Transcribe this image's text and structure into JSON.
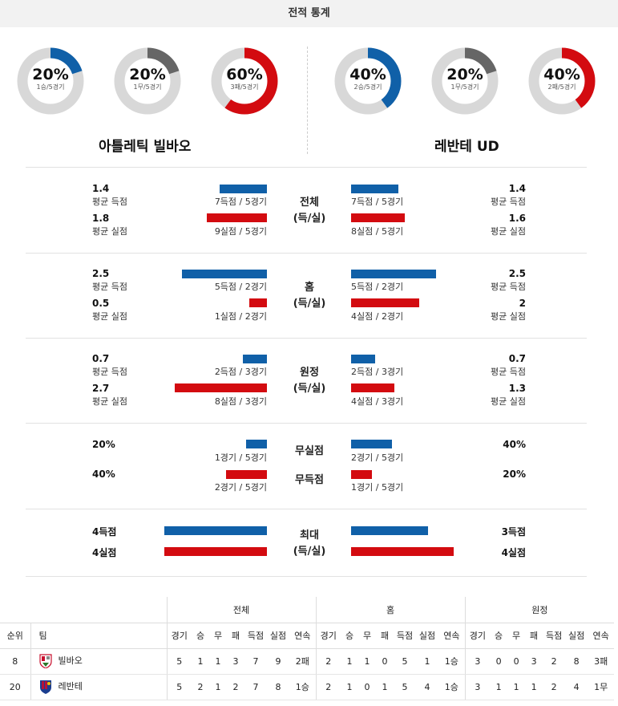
{
  "header": {
    "title": "전적 통계"
  },
  "teams": {
    "home": "아틀레틱 빌바오",
    "away": "레반테 UD"
  },
  "colors": {
    "win": "#1060a8",
    "draw": "#666666",
    "loss": "#d30b10",
    "track": "#d8d8d8"
  },
  "donuts": [
    {
      "pct_text": "20%",
      "sub": "1승/5경기",
      "fraction": 0.2,
      "kind": "win"
    },
    {
      "pct_text": "20%",
      "sub": "1무/5경기",
      "fraction": 0.2,
      "kind": "draw"
    },
    {
      "pct_text": "60%",
      "sub": "3패/5경기",
      "fraction": 0.6,
      "kind": "loss"
    },
    {
      "pct_text": "40%",
      "sub": "2승/5경기",
      "fraction": 0.4,
      "kind": "win"
    },
    {
      "pct_text": "20%",
      "sub": "1무/5경기",
      "fraction": 0.2,
      "kind": "draw"
    },
    {
      "pct_text": "40%",
      "sub": "2패/5경기",
      "fraction": 0.4,
      "kind": "loss"
    }
  ],
  "labels": {
    "avg_scored": "평균 득점",
    "avg_conceded": "평균 실점"
  },
  "sections": {
    "total": {
      "title": [
        "전체",
        "(득/실)"
      ],
      "home": {
        "scored": "1.4",
        "scored_count": "7득점 / 5경기",
        "conceded": "1.8",
        "conceded_count": "9실점 / 5경기"
      },
      "away": {
        "scored": "1.4",
        "scored_count": "7득점 / 5경기",
        "conceded": "1.6",
        "conceded_count": "8실점 / 5경기"
      }
    },
    "home": {
      "title": [
        "홈",
        "(득/실)"
      ],
      "home": {
        "scored": "2.5",
        "scored_count": "5득점 / 2경기",
        "conceded": "0.5",
        "conceded_count": "1실점 / 2경기"
      },
      "away": {
        "scored": "2.5",
        "scored_count": "5득점 / 2경기",
        "conceded": "2",
        "conceded_count": "4실점 / 2경기"
      }
    },
    "away": {
      "title": [
        "원정",
        "(득/실)"
      ],
      "home": {
        "scored": "0.7",
        "scored_count": "2득점 / 3경기",
        "conceded": "2.7",
        "conceded_count": "8실점 / 3경기"
      },
      "away": {
        "scored": "0.7",
        "scored_count": "2득점 / 3경기",
        "conceded": "1.3",
        "conceded_count": "4실점 / 3경기"
      }
    },
    "clean": {
      "title_clean": "무실점",
      "title_noscore": "무득점",
      "home": {
        "clean": "20%",
        "clean_count": "1경기 / 5경기",
        "noscore": "40%",
        "noscore_count": "2경기 / 5경기"
      },
      "away": {
        "clean": "40%",
        "clean_count": "2경기 / 5경기",
        "noscore": "20%",
        "noscore_count": "1경기 / 5경기"
      }
    },
    "max": {
      "title": [
        "최대",
        "(득/실)"
      ],
      "home": {
        "scored": "4득점",
        "conceded": "4실점"
      },
      "away": {
        "scored": "3득점",
        "conceded": "4실점"
      }
    }
  },
  "bar_levels": {
    "total": {
      "home_scored": 0.37,
      "home_conceded": 0.47,
      "away_scored": 0.37,
      "away_conceded": 0.42
    },
    "home": {
      "home_scored": 0.66,
      "home_conceded": 0.14,
      "away_scored": 0.66,
      "away_conceded": 0.53
    },
    "away": {
      "home_scored": 0.19,
      "home_conceded": 0.72,
      "away_scored": 0.19,
      "away_conceded": 0.34
    },
    "clean": {
      "home_clean": 0.16,
      "home_noscore": 0.32,
      "away_clean": 0.32,
      "away_noscore": 0.16
    },
    "max": {
      "home_scored": 0.8,
      "home_conceded": 0.8,
      "away_scored": 0.6,
      "away_conceded": 0.8
    }
  },
  "table": {
    "groups": [
      "전체",
      "홈",
      "원정"
    ],
    "col_rank": "순위",
    "col_team": "팀",
    "sub_headers": [
      "경기",
      "승",
      "무",
      "패",
      "득점",
      "실점",
      "연속"
    ],
    "rows": [
      {
        "rank": "8",
        "team": "빌바오",
        "emblem": "bilbao-emblem-icon",
        "total": [
          "5",
          "1",
          "1",
          "3",
          "7",
          "9",
          "2패"
        ],
        "home": [
          "2",
          "1",
          "1",
          "0",
          "5",
          "1",
          "1승"
        ],
        "away": [
          "3",
          "0",
          "0",
          "3",
          "2",
          "8",
          "3패"
        ]
      },
      {
        "rank": "20",
        "team": "레반테",
        "emblem": "levante-emblem-icon",
        "total": [
          "5",
          "2",
          "1",
          "2",
          "7",
          "8",
          "1승"
        ],
        "home": [
          "2",
          "1",
          "0",
          "1",
          "5",
          "4",
          "1승"
        ],
        "away": [
          "3",
          "1",
          "1",
          "1",
          "2",
          "4",
          "1무"
        ]
      }
    ]
  }
}
